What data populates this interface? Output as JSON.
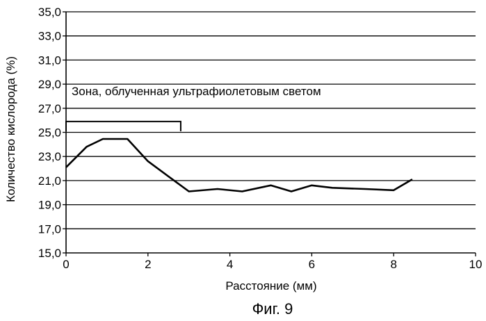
{
  "chart_data": {
    "type": "line",
    "xlabel": "Расстояние (мм)",
    "ylabel": "Количество кислорода (%)",
    "xlim": [
      0,
      10
    ],
    "ylim": [
      15.0,
      35.0
    ],
    "x_ticks": [
      0,
      2,
      4,
      6,
      8,
      10
    ],
    "x_tick_labels": [
      "0",
      "2",
      "4",
      "6",
      "8",
      "10"
    ],
    "y_ticks": [
      15,
      17,
      19,
      21,
      23,
      25,
      27,
      29,
      31,
      33,
      35
    ],
    "y_tick_labels": [
      "15,0",
      "17,0",
      "19,0",
      "21,0",
      "23,0",
      "25,0",
      "27,0",
      "29,0",
      "31,0",
      "33,0",
      "35,0"
    ],
    "grid": "horizontal",
    "series": [
      {
        "x": [
          0,
          0.5,
          0.9,
          1.5,
          2.0,
          2.6,
          3.0,
          3.7,
          4.3,
          5.0,
          5.5,
          6.0,
          6.5,
          7.3,
          8.0,
          8.45
        ],
        "y": [
          22.1,
          23.8,
          24.45,
          24.45,
          22.6,
          21.1,
          20.1,
          20.3,
          20.1,
          20.6,
          20.1,
          20.6,
          20.4,
          20.3,
          20.2,
          21.1
        ]
      }
    ],
    "annotations": [
      {
        "text": "Зона, облученная ультрафиолетовым светом",
        "bracket_x": [
          0,
          2.8
        ],
        "bracket_y": 25.9
      }
    ],
    "caption": "Фиг. 9"
  }
}
